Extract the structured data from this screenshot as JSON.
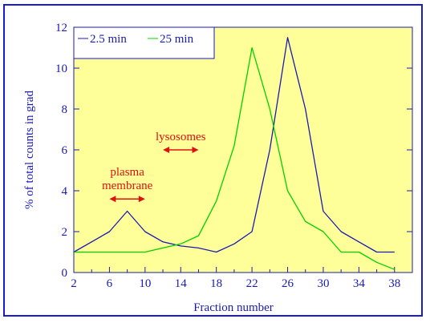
{
  "chart_data": {
    "type": "line",
    "xlabel": "Fraction number",
    "ylabel": "% of total counts in grad",
    "xlim": [
      2,
      40
    ],
    "ylim": [
      0,
      12
    ],
    "x_ticks": [
      2,
      6,
      10,
      14,
      18,
      22,
      26,
      30,
      34,
      38
    ],
    "y_ticks": [
      0,
      2,
      4,
      6,
      8,
      10,
      12
    ],
    "legend_position": "top-left",
    "grid": false,
    "series": [
      {
        "name": "2.5 min",
        "color": "#1a1ab4",
        "x": [
          2,
          6,
          8,
          10,
          12,
          14,
          16,
          18,
          20,
          22,
          24,
          26,
          28,
          30,
          32,
          34,
          36,
          38
        ],
        "y": [
          1,
          2,
          3,
          2,
          1.5,
          1.3,
          1.2,
          1,
          1.4,
          2,
          6,
          11.5,
          8,
          3,
          2,
          1.5,
          1,
          1
        ]
      },
      {
        "name": "25 min",
        "color": "#00d000",
        "x": [
          2,
          4,
          6,
          8,
          10,
          12,
          14,
          16,
          18,
          20,
          22,
          24,
          26,
          28,
          30,
          32,
          34,
          36,
          38
        ],
        "y": [
          1,
          1,
          1,
          1,
          1,
          1.2,
          1.4,
          1.8,
          3.5,
          6.2,
          11,
          8,
          4,
          2.5,
          2,
          1,
          1,
          0.5,
          0.15
        ]
      }
    ],
    "annotations": [
      {
        "text": "lysosomes",
        "color": "#e01010",
        "x_from": 12,
        "x_to": 16,
        "y": 6
      },
      {
        "text": "plasma membrane",
        "lines": [
          "plasma",
          "membrane"
        ],
        "color": "#e01010",
        "x_from": 6,
        "x_to": 10,
        "y": 3.6
      }
    ],
    "colors": {
      "plot_background": "#ffff99",
      "axis": "#1a1ab4",
      "frame": "#1a1ad0"
    }
  }
}
